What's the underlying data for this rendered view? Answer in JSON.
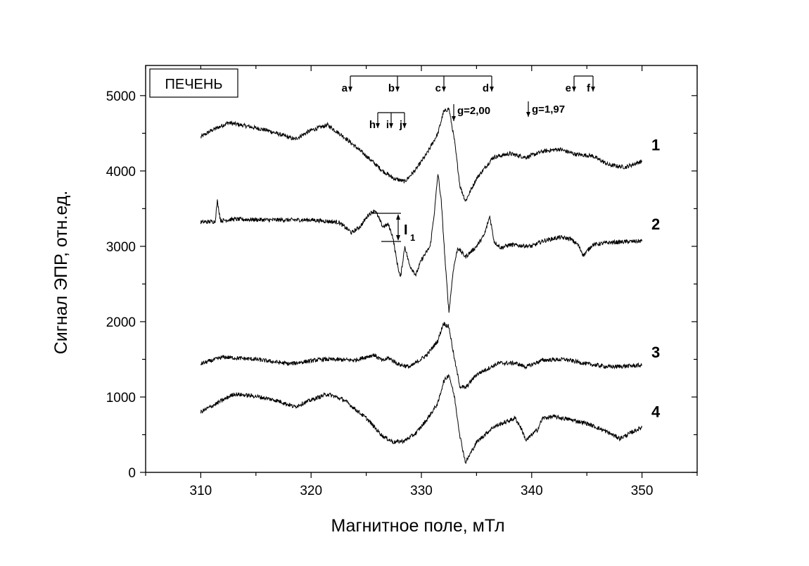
{
  "chart_data": {
    "type": "line",
    "title": "",
    "xlabel": "Магнитное поле, мТл",
    "ylabel": "Сигнал ЭПР, отн.ед.",
    "xlim": [
      305,
      355
    ],
    "ylim": [
      0,
      5400
    ],
    "x_ticks": [
      310,
      320,
      330,
      340,
      350
    ],
    "y_ticks": [
      0,
      1000,
      2000,
      3000,
      4000,
      5000
    ],
    "box_label": "ПЕЧЕНЬ",
    "series": [
      {
        "name": "1",
        "x": [
          310,
          311,
          312.5,
          314,
          316,
          317.5,
          318.5,
          320,
          321.5,
          323,
          325,
          326.5,
          327.5,
          328.5,
          329.5,
          330.5,
          331.5,
          332,
          332.5,
          333,
          333.5,
          334,
          335,
          336.5,
          338,
          339.5,
          341,
          342.5,
          344,
          345.5,
          347,
          348.5,
          350
        ],
        "values": [
          4450,
          4540,
          4640,
          4600,
          4540,
          4470,
          4420,
          4540,
          4610,
          4450,
          4200,
          4000,
          3900,
          3860,
          4020,
          4230,
          4500,
          4780,
          4830,
          4400,
          3800,
          3600,
          3900,
          4180,
          4230,
          4180,
          4260,
          4290,
          4220,
          4200,
          4080,
          4050,
          4130
        ]
      },
      {
        "name": "2",
        "x": [
          310,
          311.3,
          311.5,
          311.8,
          313,
          316,
          320,
          322.5,
          323.7,
          324.5,
          325.2,
          325.8,
          326.5,
          327,
          327.4,
          327.8,
          328.1,
          328.5,
          328.9,
          329.5,
          330,
          330.8,
          331.2,
          331.5,
          331.8,
          332.2,
          332.5,
          332.9,
          333.3,
          334,
          335,
          335.7,
          336.2,
          336.6,
          337.2,
          338,
          340,
          341,
          342.5,
          343.5,
          344.2,
          344.7,
          345.5,
          347,
          350
        ],
        "values": [
          3320,
          3330,
          3600,
          3340,
          3360,
          3350,
          3350,
          3320,
          3180,
          3270,
          3420,
          3480,
          3260,
          3290,
          3130,
          2780,
          2580,
          3000,
          2760,
          2620,
          2820,
          3000,
          3480,
          3970,
          3600,
          2700,
          2130,
          2700,
          2980,
          2860,
          3000,
          3150,
          3400,
          3060,
          2980,
          3020,
          3000,
          3070,
          3120,
          3100,
          3020,
          2880,
          3020,
          3050,
          3070
        ]
      },
      {
        "name": "3",
        "x": [
          310,
          312,
          315,
          318,
          321,
          324,
          325.7,
          326.5,
          327,
          328,
          329,
          330.5,
          331.5,
          332,
          332.5,
          333,
          333.5,
          334,
          335,
          337,
          338.5,
          339.5,
          341,
          343,
          345,
          347,
          350
        ],
        "values": [
          1440,
          1530,
          1500,
          1440,
          1500,
          1490,
          1560,
          1480,
          1520,
          1430,
          1400,
          1560,
          1750,
          1980,
          1930,
          1500,
          1140,
          1120,
          1300,
          1450,
          1450,
          1400,
          1490,
          1500,
          1440,
          1400,
          1420
        ]
      },
      {
        "name": "4",
        "x": [
          310,
          311.5,
          313,
          315,
          317,
          318.5,
          320,
          321.5,
          323,
          325,
          326.5,
          327.5,
          328.5,
          329.5,
          330.5,
          331.5,
          332,
          332.5,
          333,
          333.5,
          334,
          335,
          336.5,
          337.5,
          338.5,
          339,
          339.5,
          340,
          340.5,
          341,
          342,
          343.5,
          345,
          346.5,
          348,
          350
        ],
        "values": [
          800,
          920,
          1040,
          1010,
          950,
          870,
          960,
          1040,
          960,
          720,
          480,
          400,
          420,
          520,
          700,
          920,
          1200,
          1300,
          1000,
          480,
          130,
          400,
          600,
          660,
          720,
          600,
          420,
          500,
          560,
          720,
          740,
          700,
          650,
          560,
          450,
          600
        ]
      }
    ],
    "annotations": {
      "group1": [
        "a",
        "b",
        "c",
        "d"
      ],
      "group2": [
        "e",
        "f"
      ],
      "group3": [
        "h",
        "i",
        "j"
      ],
      "g_markers": [
        "g=2,00",
        "g=1,97"
      ],
      "intensity": "I",
      "intensity_sub": "1"
    }
  }
}
